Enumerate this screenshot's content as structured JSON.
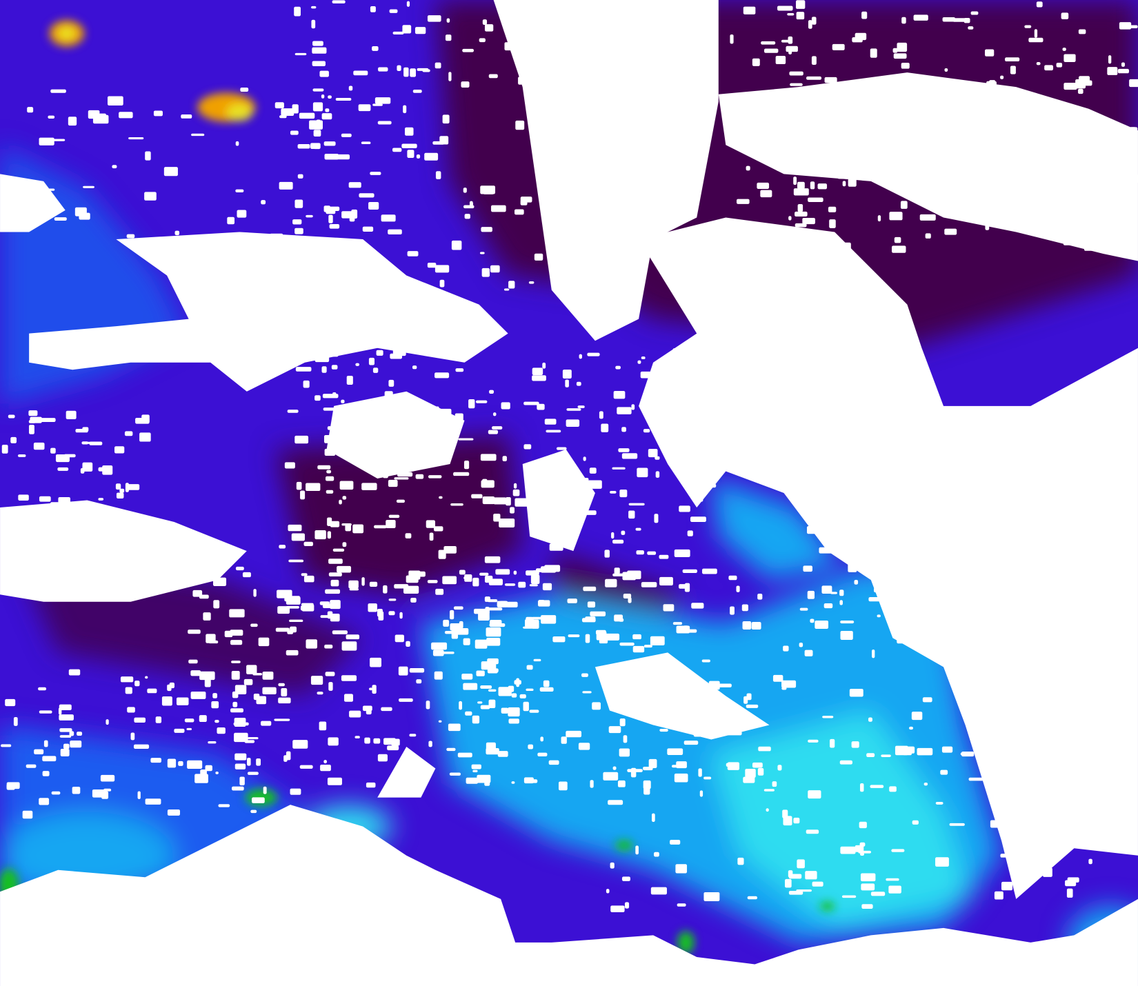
{
  "map": {
    "kind": "satellite false-color ocean field with cloud mask",
    "colors": {
      "cloud_mask": "#ffffff",
      "deep_purple": "#42004e",
      "violet": "#3c10d4",
      "blue": "#1a5cf0",
      "light_blue": "#18a6f2",
      "cyan": "#2edcf0",
      "green": "#16c020",
      "yellow": "#e8e020",
      "orange": "#f0a000"
    }
  }
}
